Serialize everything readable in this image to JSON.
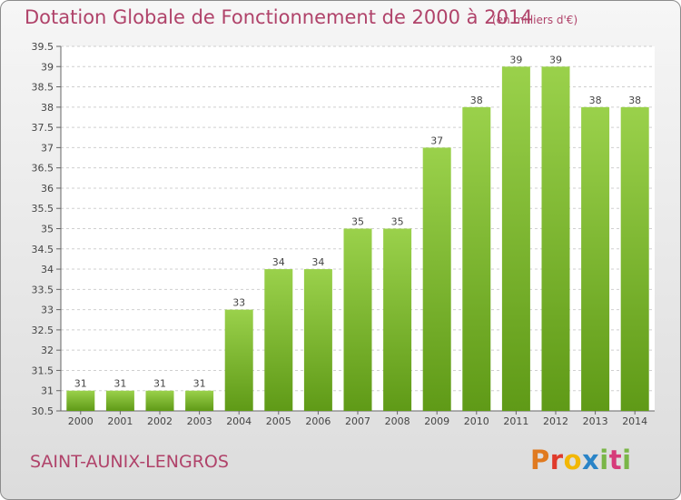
{
  "header": {
    "title": "Dotation Globale de Fonctionnement de 2000 à 2014",
    "subtitle": "(en milliers d'€)"
  },
  "footer": {
    "commune": "SAINT-AUNIX-LENGROS",
    "logo_letters": [
      "P",
      "r",
      "o",
      "x",
      "i",
      "t",
      "i"
    ],
    "logo_colors": [
      "#e07a1f",
      "#e03a2b",
      "#f2b705",
      "#2a84c7",
      "#7ab648",
      "#d63b7a",
      "#7ab648"
    ]
  },
  "colors": {
    "bar_top": "#9ad14b",
    "bar_bottom": "#5f9a17",
    "accent": "#b0436a"
  },
  "chart_data": {
    "type": "bar",
    "title": "Dotation Globale de Fonctionnement de 2000 à 2014",
    "subtitle": "(en milliers d'€)",
    "categories": [
      "2000",
      "2001",
      "2002",
      "2003",
      "2004",
      "2005",
      "2006",
      "2007",
      "2008",
      "2009",
      "2010",
      "2011",
      "2012",
      "2013",
      "2014"
    ],
    "values": [
      31,
      31,
      31,
      31,
      33,
      34,
      34,
      35,
      35,
      37,
      38,
      39,
      39,
      38,
      38
    ],
    "value_labels": [
      "31",
      "31",
      "31",
      "31",
      "33",
      "34",
      "34",
      "35",
      "35",
      "37",
      "38",
      "39",
      "39",
      "38",
      "38"
    ],
    "ylim": [
      30.5,
      39.5
    ],
    "yticks": [
      "30.5",
      "31",
      "31.5",
      "32",
      "32.5",
      "33",
      "33.5",
      "34",
      "34.5",
      "35",
      "35.5",
      "36",
      "36.5",
      "37",
      "37.5",
      "38",
      "38.5",
      "39",
      "39.5"
    ],
    "grid": true,
    "xlabel": "",
    "ylabel": ""
  }
}
